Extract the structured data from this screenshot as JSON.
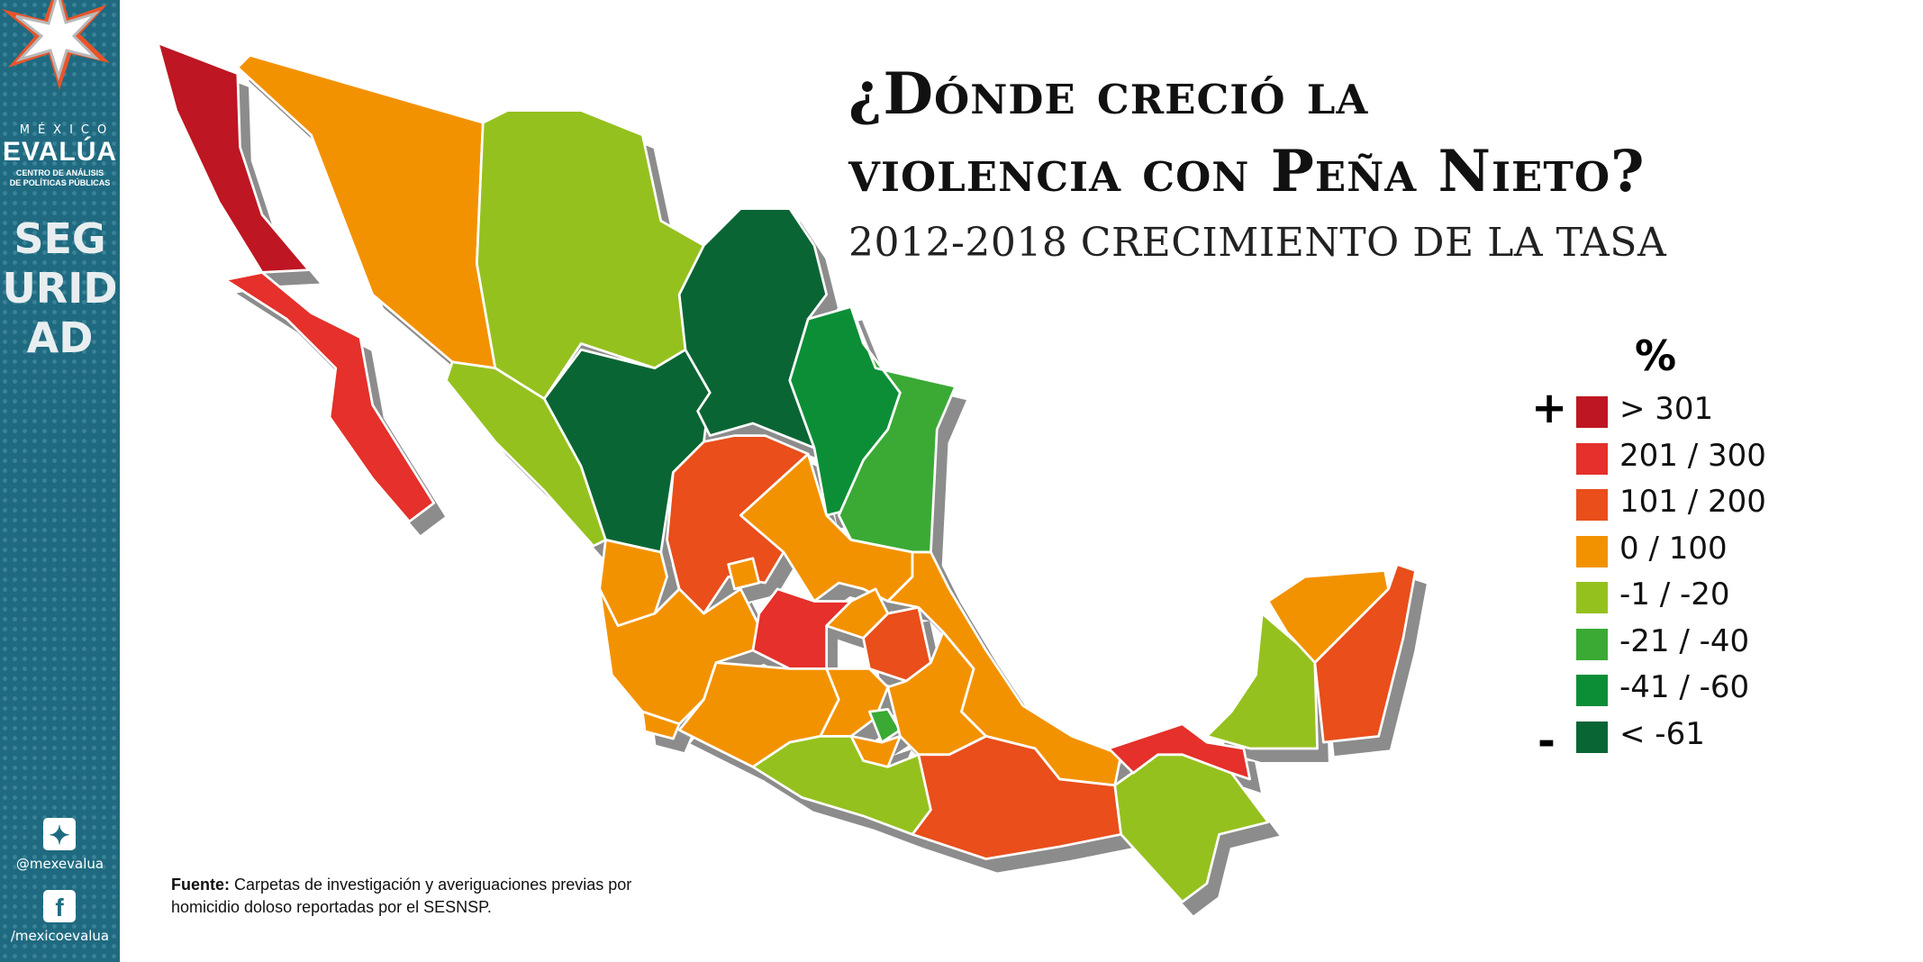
{
  "sidebar": {
    "brand_top": "MÉXICO",
    "brand_main": "EVALÚA",
    "brand_sub_1": "CENTRO DE ANÁLISIS",
    "brand_sub_2": "DE POLÍTICAS PÚBLICAS",
    "section": "SEGURIDAD",
    "twitter_handle": "@mexevalua",
    "facebook_handle": "/mexicoevalua",
    "twitter_icon": "twitter-icon",
    "facebook_icon": "facebook-icon",
    "colors": {
      "background": "#1f6a80",
      "star_accent": "#e9542a"
    }
  },
  "header": {
    "title_line1": "¿Dónde creció la",
    "title_line2": "violencia con Peña Nieto?",
    "subtitle": "2012-2018 CRECIMIENTO DE LA TASA"
  },
  "chart_data": {
    "type": "choropleth",
    "legend_title": "%",
    "legend_plus": "+",
    "legend_minus": "-",
    "legend_placement": "right",
    "classes": [
      {
        "label": "> 301",
        "color": "#be1622"
      },
      {
        "label": "201 / 300",
        "color": "#e5302b"
      },
      {
        "label": "101 / 200",
        "color": "#e94e1b"
      },
      {
        "label": "0 / 100",
        "color": "#f39200"
      },
      {
        "label": "-1 / -20",
        "color": "#95c11f"
      },
      {
        "label": "-21 / -40",
        "color": "#3aaa35"
      },
      {
        "label": "-41 / -60",
        "color": "#0c8e37"
      },
      {
        "label": "< -61",
        "color": "#0a6534"
      }
    ],
    "region_classes": [
      0,
      1,
      3,
      4,
      4,
      7,
      7,
      6,
      5,
      2,
      3,
      3,
      3,
      3,
      1,
      3,
      2,
      3,
      3,
      3,
      5,
      3,
      3,
      3,
      4,
      2,
      4,
      1,
      4,
      3,
      2
    ]
  },
  "source": {
    "label": "Fuente:",
    "text_1": " Carpetas de investigación y averiguaciones previas por",
    "text_2": "homicidio doloso reportadas por el SESNSP."
  }
}
